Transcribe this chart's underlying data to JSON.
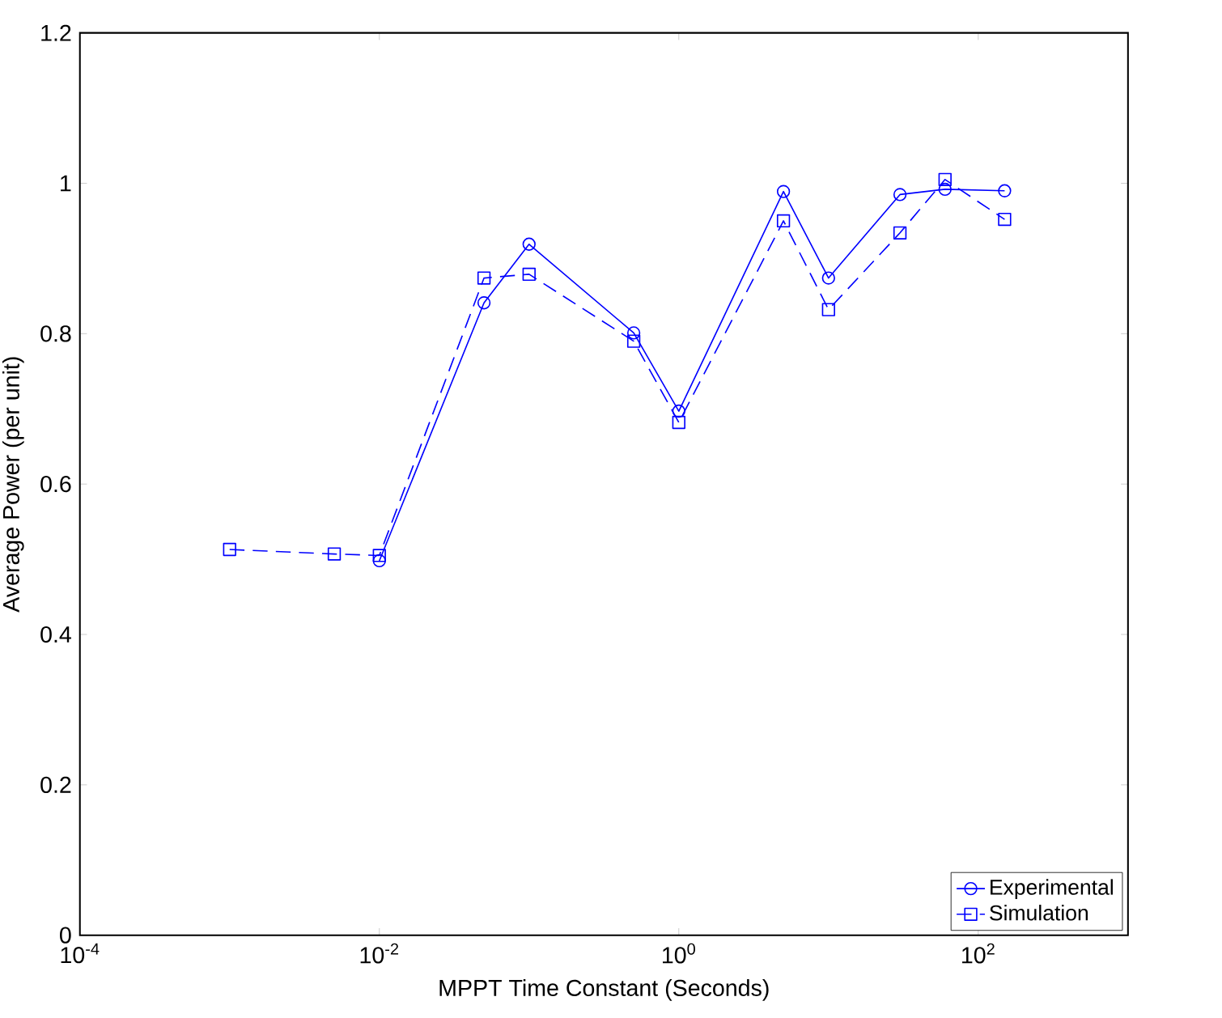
{
  "chart_data": {
    "type": "line",
    "xlabel": "MPPT Time Constant (Seconds)",
    "ylabel": "Average Power (per unit)",
    "log": "x",
    "xlim": [
      0.0001,
      1000
    ],
    "ylim": [
      0,
      1.2
    ],
    "xticks": [
      {
        "value": 0.0001,
        "label": "10$^{-4}$"
      },
      {
        "value": 0.01,
        "label": "10$^{-2}$"
      },
      {
        "value": 1,
        "label": "10$^{0}$"
      },
      {
        "value": 100,
        "label": "10$^{2}$"
      }
    ],
    "yticks": [
      0,
      0.2,
      0.4,
      0.6,
      0.8,
      1,
      1.2
    ],
    "legend": "bottom right",
    "grid": false,
    "series": [
      {
        "name": "Experimental",
        "color": "#0000ff",
        "marker": "circle",
        "line_style": "solid",
        "x": [
          0.01,
          0.05,
          0.1,
          0.5,
          1,
          5,
          10,
          30,
          60,
          150
        ],
        "values": [
          0.498,
          0.841,
          0.919,
          0.801,
          0.697,
          0.989,
          0.874,
          0.985,
          0.992,
          0.99
        ]
      },
      {
        "name": "Simulation",
        "color": "#0000ff",
        "marker": "square",
        "line_style": "dashed",
        "x": [
          0.001,
          0.005,
          0.01,
          0.05,
          0.1,
          0.5,
          1,
          5,
          10,
          30,
          60,
          150
        ],
        "values": [
          0.513,
          0.507,
          0.505,
          0.874,
          0.879,
          0.79,
          0.682,
          0.95,
          0.832,
          0.934,
          1.005,
          0.952
        ]
      }
    ]
  }
}
